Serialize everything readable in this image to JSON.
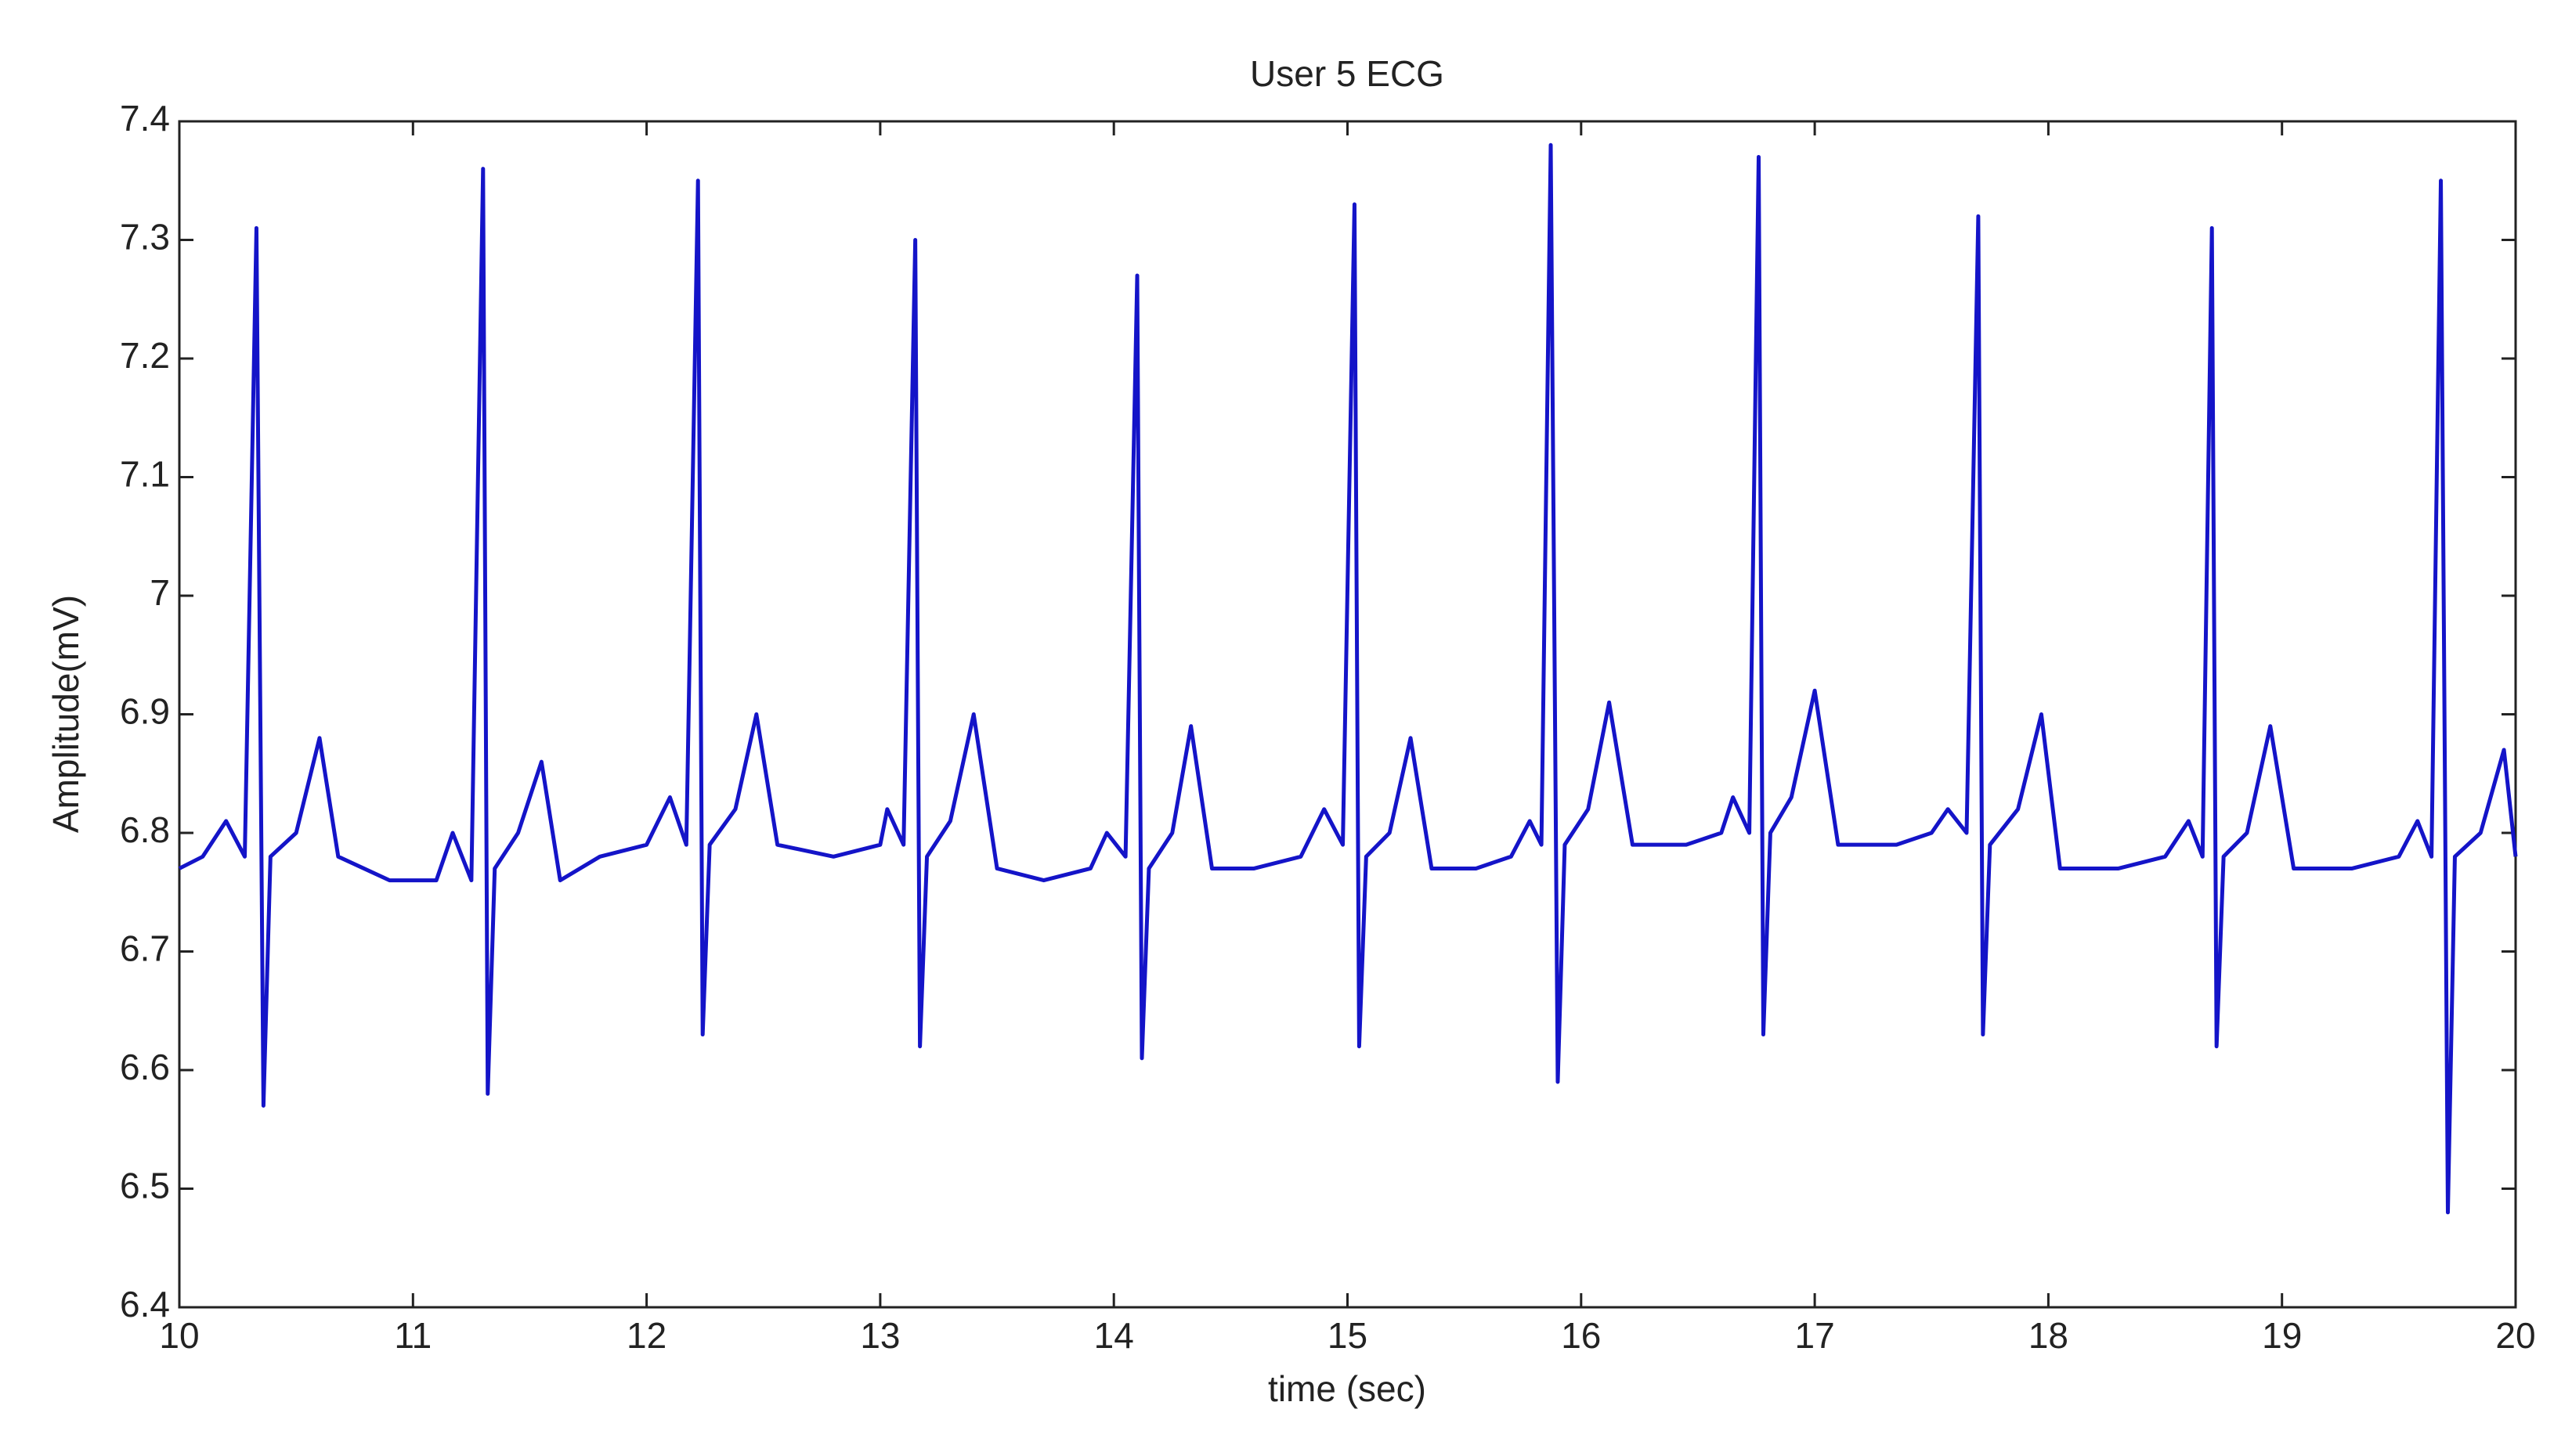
{
  "chart_data": {
    "type": "line",
    "title": "User 5 ECG",
    "x_label": "time (sec)",
    "y_label": "Amplitude(mV)",
    "xlim": [
      10,
      20
    ],
    "xticks": [
      10,
      11,
      12,
      13,
      14,
      15,
      16,
      17,
      18,
      19,
      20
    ],
    "ylim": [
      6.4,
      7.4
    ],
    "yticks": [
      6.4,
      6.5,
      6.6,
      6.7,
      6.8,
      6.9,
      7,
      7.1,
      7.2,
      7.3,
      7.4
    ],
    "grid": false,
    "series": [
      {
        "color": "#1414c8",
        "x": [
          10.0,
          10.1,
          10.2,
          10.28,
          10.33,
          10.36,
          10.39,
          10.5,
          10.6,
          10.68,
          10.9,
          11.1,
          11.17,
          11.25,
          11.3,
          11.32,
          11.35,
          11.45,
          11.55,
          11.63,
          11.8,
          12.0,
          12.1,
          12.17,
          12.22,
          12.24,
          12.27,
          12.38,
          12.47,
          12.56,
          12.8,
          13.0,
          13.03,
          13.1,
          13.15,
          13.17,
          13.2,
          13.3,
          13.4,
          13.5,
          13.7,
          13.9,
          13.97,
          14.05,
          14.1,
          14.12,
          14.15,
          14.25,
          14.33,
          14.42,
          14.6,
          14.8,
          14.9,
          14.98,
          15.03,
          15.05,
          15.08,
          15.18,
          15.27,
          15.36,
          15.55,
          15.7,
          15.78,
          15.83,
          15.87,
          15.9,
          15.93,
          16.03,
          16.12,
          16.22,
          16.45,
          16.6,
          16.65,
          16.72,
          16.76,
          16.78,
          16.81,
          16.9,
          17.0,
          17.1,
          17.35,
          17.5,
          17.57,
          17.65,
          17.7,
          17.72,
          17.75,
          17.87,
          17.97,
          18.05,
          18.3,
          18.5,
          18.6,
          18.66,
          18.7,
          18.72,
          18.75,
          18.85,
          18.95,
          19.05,
          19.3,
          19.5,
          19.58,
          19.64,
          19.68,
          19.71,
          19.74,
          19.85,
          19.95,
          20.0
        ],
        "values": [
          6.77,
          6.78,
          6.81,
          6.78,
          7.31,
          6.57,
          6.78,
          6.8,
          6.88,
          6.78,
          6.76,
          6.76,
          6.8,
          6.76,
          7.36,
          6.58,
          6.77,
          6.8,
          6.86,
          6.76,
          6.78,
          6.79,
          6.83,
          6.79,
          7.35,
          6.63,
          6.79,
          6.82,
          6.9,
          6.79,
          6.78,
          6.79,
          6.82,
          6.79,
          7.3,
          6.62,
          6.78,
          6.81,
          6.9,
          6.77,
          6.76,
          6.77,
          6.8,
          6.78,
          7.27,
          6.61,
          6.77,
          6.8,
          6.89,
          6.77,
          6.77,
          6.78,
          6.82,
          6.79,
          7.33,
          6.62,
          6.78,
          6.8,
          6.88,
          6.77,
          6.77,
          6.78,
          6.81,
          6.79,
          7.38,
          6.59,
          6.79,
          6.82,
          6.91,
          6.79,
          6.79,
          6.8,
          6.83,
          6.8,
          7.37,
          6.63,
          6.8,
          6.83,
          6.92,
          6.79,
          6.79,
          6.8,
          6.82,
          6.8,
          7.32,
          6.63,
          6.79,
          6.82,
          6.9,
          6.77,
          6.77,
          6.78,
          6.81,
          6.78,
          7.31,
          6.62,
          6.78,
          6.8,
          6.89,
          6.77,
          6.77,
          6.78,
          6.81,
          6.78,
          7.35,
          6.48,
          6.78,
          6.8,
          6.87,
          6.78
        ]
      }
    ]
  }
}
